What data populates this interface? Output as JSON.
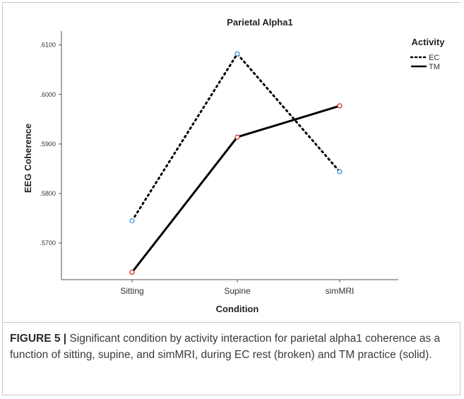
{
  "chart_data": {
    "type": "line",
    "title": "Parietal Alpha1",
    "xlabel": "Condition",
    "ylabel": "EEG Coherence",
    "categories": [
      "Sitting",
      "Supine",
      "simMRI"
    ],
    "yticks": [
      ".5700",
      ".5800",
      ".5900",
      ".6000",
      ".6100"
    ],
    "ylim": [
      0.5626,
      0.6128
    ],
    "legend": {
      "title": "Activity",
      "placement": "top-right"
    },
    "series": [
      {
        "name": "EC",
        "values": [
          0.5745,
          0.6082,
          0.5844
        ],
        "style": "dotted",
        "marker_color": "#4a90d9"
      },
      {
        "name": "TM",
        "values": [
          0.5641,
          0.5914,
          0.5977
        ],
        "style": "solid",
        "marker_color": "#cc3333"
      }
    ],
    "line_color": "#000000"
  },
  "caption": {
    "label": "FIGURE 5",
    "separator": "|",
    "text": " Significant condition by activity interaction for parietal alpha1 coherence as a function of sitting, supine, and simMRI, during EC rest (broken) and TM practice (solid)."
  }
}
